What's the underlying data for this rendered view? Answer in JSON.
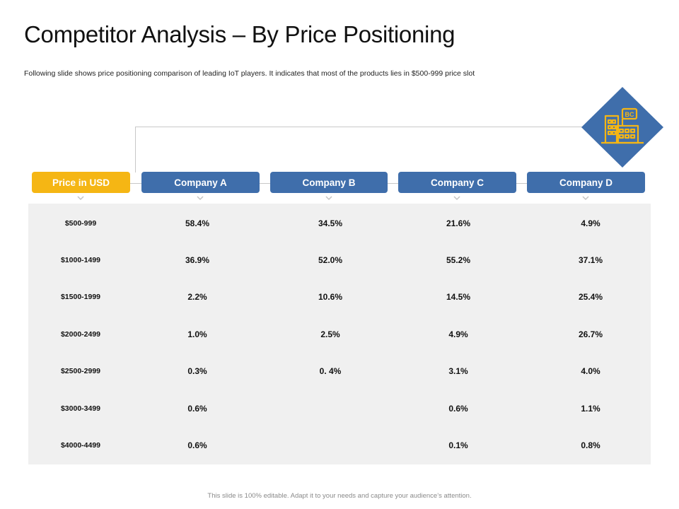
{
  "title": "Competitor Analysis – By Price Positioning",
  "subtitle": "Following slide shows price positioning  comparison of leading IoT players.  It indicates  that most  of the products lies in $500-999 price slot",
  "icon": {
    "name": "building-icon",
    "label": "BC",
    "badge_color": "#3f6eab",
    "icon_color": "#f5b614"
  },
  "headers": [
    "Price in USD",
    "Company A",
    "Company B",
    "Company C",
    "Company D"
  ],
  "rows": [
    {
      "price": "$500-999",
      "values": [
        "58.4%",
        "34.5%",
        "21.6%",
        "4.9%"
      ]
    },
    {
      "price": "$1000-1499",
      "values": [
        "36.9%",
        "52.0%",
        "55.2%",
        "37.1%"
      ]
    },
    {
      "price": "$1500-1999",
      "values": [
        "2.2%",
        "10.6%",
        "14.5%",
        "25.4%"
      ]
    },
    {
      "price": "$2000-2499",
      "values": [
        "1.0%",
        "2.5%",
        "4.9%",
        "26.7%"
      ]
    },
    {
      "price": "$2500-2999",
      "values": [
        "0.3%",
        "0. 4%",
        "3.1%",
        "4.0%"
      ]
    },
    {
      "price": "$3000-3499",
      "values": [
        "0.6%",
        "",
        "0.6%",
        "1.1%"
      ]
    },
    {
      "price": "$4000-4499",
      "values": [
        "0.6%",
        "",
        "0.1%",
        "0.8%"
      ]
    }
  ],
  "footer": "This slide is 100% editable. Adapt it to your needs and capture your audience’s attention."
}
